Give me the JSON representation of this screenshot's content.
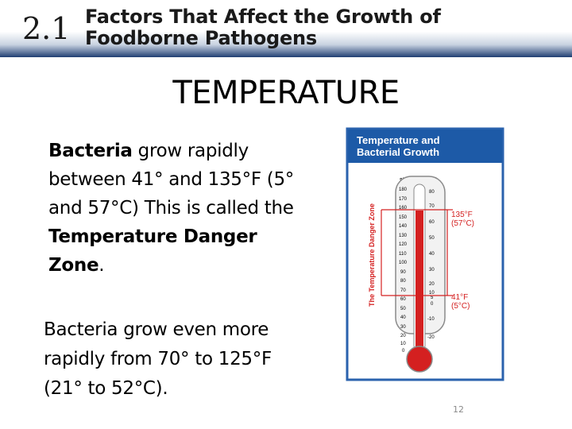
{
  "header": {
    "section_number": "2.1",
    "title_line1": "Factors That Affect the Growth of",
    "title_line2": "Foodborne Pathogens"
  },
  "heading": "TEMPERATURE",
  "paragraph1": {
    "bold1": "Bacteria",
    "text1": " grow rapidly between 41° and 135°F (5° and 57°C)  This is called the ",
    "bold2": "Temperature Danger Zone",
    "text2": "."
  },
  "paragraph2": "Bacteria grow even more rapidly from 70° to 125°F (21° to 52°C).",
  "figure": {
    "title_line1": "Temperature and",
    "title_line2": "Bacterial Growth",
    "unit_f": "°F",
    "unit_c": "°C",
    "danger_zone_label": "The Temperature Danger Zone",
    "upper_label_f": "135°F",
    "upper_label_c": "(57°C)",
    "lower_label_f": "41°F",
    "lower_label_c": "(5°C)",
    "f_ticks": [
      "180",
      "170",
      "160",
      "150",
      "140",
      "130",
      "120",
      "110",
      "100",
      "90",
      "80",
      "70",
      "60",
      "50",
      "40",
      "30",
      "20",
      "10",
      "0"
    ],
    "c_ticks": [
      "80",
      "70",
      "60",
      "50",
      "40",
      "30",
      "20",
      "10",
      "5",
      "0",
      "-10",
      "-20"
    ],
    "colors": {
      "title_bg": "#1d5aa7",
      "danger": "#d42020",
      "tube_border": "#8a8a8a"
    }
  },
  "page_number": "12"
}
